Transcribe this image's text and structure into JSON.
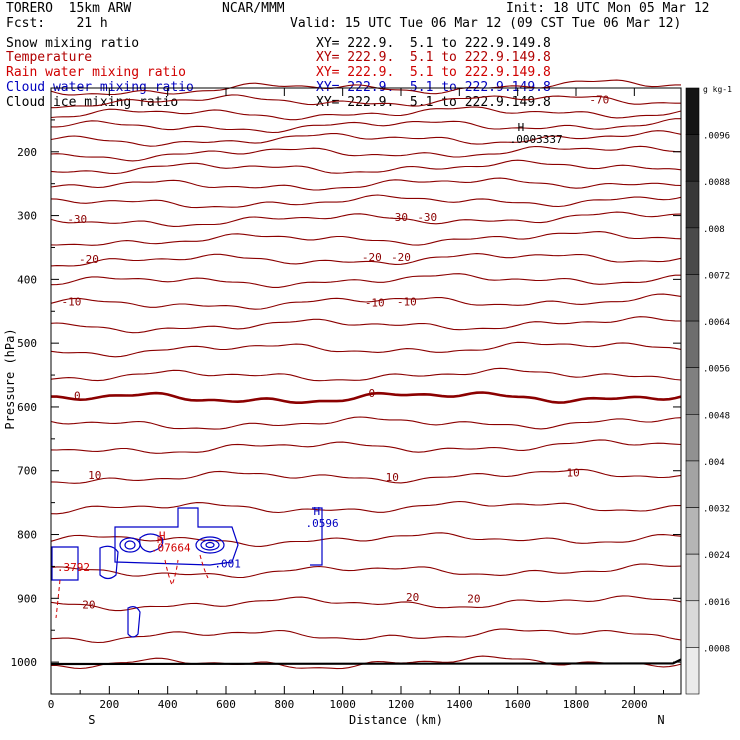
{
  "header": {
    "model": "TORERO  15km ARW",
    "center": "NCAR/MMM",
    "init": "Init: 18 UTC Mon 05 Mar 12",
    "fcst": "Fcst:    21 h",
    "valid": "Valid: 15 UTC Tue 06 Mar 12 (09 CST Tue 06 Mar 12)"
  },
  "legend": [
    {
      "label": "Snow mixing ratio",
      "xy": "XY= 222.9.  5.1 to 222.9.149.8",
      "color": "#000000"
    },
    {
      "label": "Temperature",
      "xy": "XY= 222.9.  5.1 to 222.9.149.8",
      "color": "#b00000"
    },
    {
      "label": "Rain water mixing ratio",
      "xy": "XY= 222.9.  5.1 to 222.9.149.8",
      "color": "#d00000"
    },
    {
      "label": "Cloud water mixing ratio",
      "xy": "XY= 222.9.  5.1 to 222.9.149.8",
      "color": "#0000c0"
    },
    {
      "label": "Cloud ice mixing ratio",
      "xy": "XY= 222.9.  5.1 to 222.9.149.8",
      "color": "#000000"
    }
  ],
  "chart_data": {
    "type": "contour",
    "xlabel": "Distance (km)",
    "ylabel": "Pressure (hPa)",
    "xlim": [
      0,
      2160
    ],
    "ylim": [
      1050,
      100
    ],
    "x_ticks": [
      0,
      200,
      400,
      600,
      800,
      1000,
      1200,
      1400,
      1600,
      1800,
      2000
    ],
    "y_ticks": [
      200,
      300,
      400,
      500,
      600,
      700,
      800,
      900,
      1000
    ],
    "x_end_labels": {
      "left": "S",
      "right": "N"
    },
    "temperature_isotherms": [
      {
        "p_left": 105,
        "p_right": 95,
        "label": "-70"
      },
      {
        "p_left": 122,
        "p_right": 118
      },
      {
        "p_left": 142,
        "p_right": 137
      },
      {
        "p_left": 162,
        "p_right": 157
      },
      {
        "p_left": 183,
        "p_right": 177
      },
      {
        "p_left": 205,
        "p_right": 198
      },
      {
        "p_left": 228,
        "p_right": 222
      },
      {
        "p_left": 255,
        "p_right": 247
      },
      {
        "p_left": 282,
        "p_right": 274
      },
      {
        "p_left": 310,
        "p_right": 302,
        "label": "-30"
      },
      {
        "p_left": 340,
        "p_right": 333
      },
      {
        "p_left": 372,
        "p_right": 365,
        "label": "-20"
      },
      {
        "p_left": 405,
        "p_right": 398
      },
      {
        "p_left": 440,
        "p_right": 432,
        "label": "-10"
      },
      {
        "p_left": 475,
        "p_right": 468
      },
      {
        "p_left": 512,
        "p_right": 505
      },
      {
        "p_left": 553,
        "p_right": 548
      },
      {
        "p_left": 588,
        "p_right": 583,
        "label": "0",
        "bold": true
      },
      {
        "p_left": 628,
        "p_right": 623
      },
      {
        "p_left": 666,
        "p_right": 660
      },
      {
        "p_left": 712,
        "p_right": 706,
        "label": "10"
      },
      {
        "p_left": 760,
        "p_right": 755
      },
      {
        "p_left": 810,
        "p_right": 805
      },
      {
        "p_left": 860,
        "p_right": 855
      },
      {
        "p_left": 910,
        "p_right": 905,
        "label": "20"
      },
      {
        "p_left": 960,
        "p_right": 955
      },
      {
        "p_left": 1005,
        "p_right": 998
      }
    ],
    "isotherm_labels": [
      {
        "x": 1880,
        "p": 118,
        "text": "-70"
      },
      {
        "x": 90,
        "p": 305,
        "text": "-30"
      },
      {
        "x": 1190,
        "p": 302,
        "text": "-30"
      },
      {
        "x": 1290,
        "p": 302,
        "text": "-30"
      },
      {
        "x": 130,
        "p": 368,
        "text": "-20"
      },
      {
        "x": 1100,
        "p": 365,
        "text": "-20"
      },
      {
        "x": 1200,
        "p": 365,
        "text": "-20"
      },
      {
        "x": 70,
        "p": 435,
        "text": "-10"
      },
      {
        "x": 1110,
        "p": 436,
        "text": "-10"
      },
      {
        "x": 1220,
        "p": 435,
        "text": "-10"
      },
      {
        "x": 90,
        "p": 582,
        "text": "0"
      },
      {
        "x": 1100,
        "p": 578,
        "text": "0"
      },
      {
        "x": 150,
        "p": 707,
        "text": "10"
      },
      {
        "x": 1170,
        "p": 710,
        "text": "10"
      },
      {
        "x": 1790,
        "p": 703,
        "text": "10"
      },
      {
        "x": 130,
        "p": 910,
        "text": "20"
      },
      {
        "x": 1240,
        "p": 898,
        "text": "20"
      },
      {
        "x": 1450,
        "p": 900,
        "text": "20"
      }
    ],
    "maxima": [
      {
        "x": 1600,
        "p": 180,
        "text": "H",
        "sub": ".0003337",
        "color": "#000000"
      },
      {
        "x": 900,
        "p": 782,
        "text": "H",
        "sub": ".0596",
        "color": "#0000c0"
      },
      {
        "x": 370,
        "p": 820,
        "text": "H",
        "sub": ".07664",
        "color": "#d00000"
      }
    ],
    "small_labels": [
      {
        "x": 20,
        "p": 857,
        "text": ".3792",
        "color": "#d00000"
      },
      {
        "x": 560,
        "p": 852,
        "text": ".001",
        "color": "#0000c0"
      }
    ],
    "colorbar": {
      "unit": "g kg-1",
      "ticks": [
        ".0096",
        ".0088",
        ".008",
        ".0072",
        ".0064",
        ".0056",
        ".0048",
        ".004",
        ".0032",
        ".0024",
        ".0016",
        ".0008"
      ]
    }
  }
}
